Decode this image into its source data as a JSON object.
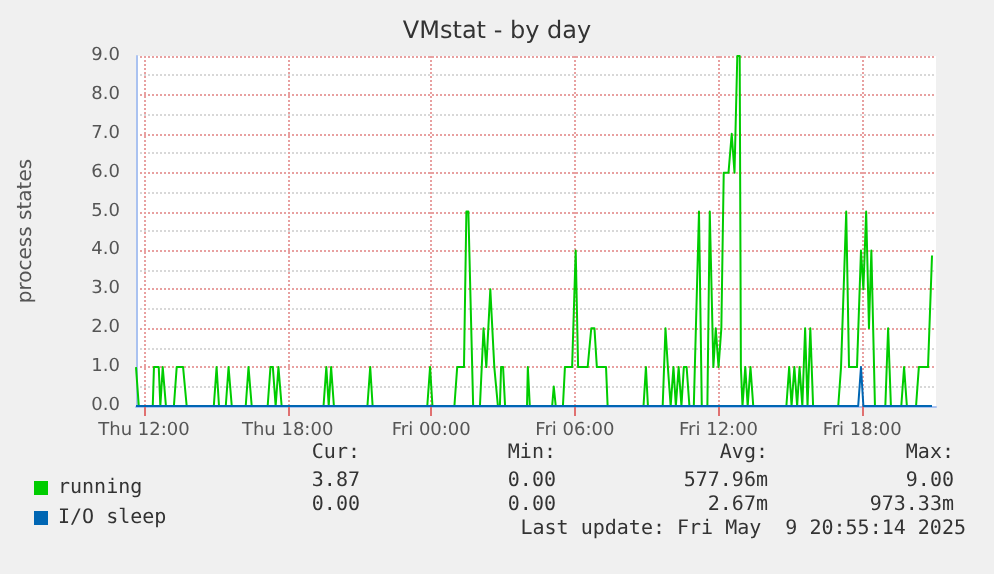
{
  "chart_data": {
    "type": "line",
    "title": "VMstat - by day",
    "ylabel": "process states",
    "xlim": [
      "2025-05-08T11:40",
      "2025-05-09T21:05"
    ],
    "xticks": [
      {
        "value": "2025-05-08T12:00",
        "label": "Thu 12:00"
      },
      {
        "value": "2025-05-08T18:00",
        "label": "Thu 18:00"
      },
      {
        "value": "2025-05-09T00:00",
        "label": "Fri 00:00"
      },
      {
        "value": "2025-05-09T06:00",
        "label": "Fri 06:00"
      },
      {
        "value": "2025-05-09T12:00",
        "label": "Fri 12:00"
      },
      {
        "value": "2025-05-09T18:00",
        "label": "Fri 18:00"
      }
    ],
    "ylim": [
      0,
      9
    ],
    "yticks": [
      {
        "value": 0,
        "label": "0.0"
      },
      {
        "value": 1,
        "label": "1.0"
      },
      {
        "value": 2,
        "label": "2.0"
      },
      {
        "value": 3,
        "label": "3.0"
      },
      {
        "value": 4,
        "label": "4.0"
      },
      {
        "value": 5,
        "label": "5.0"
      },
      {
        "value": 6,
        "label": "6.0"
      },
      {
        "value": 7,
        "label": "7.0"
      },
      {
        "value": 8,
        "label": "8.0"
      },
      {
        "value": 9,
        "label": "9.0"
      }
    ],
    "grid": true,
    "legend": "bottom left",
    "marker": "none",
    "line_style": "solid",
    "series": [
      {
        "name": "running",
        "color": "#00cc00",
        "x": [
          "2025-05-08T11:40",
          "2025-05-08T11:47",
          "2025-05-08T12:22",
          "2025-05-08T12:25",
          "2025-05-08T12:37",
          "2025-05-08T12:41",
          "2025-05-08T12:47",
          "2025-05-08T12:55",
          "2025-05-08T13:15",
          "2025-05-08T13:22",
          "2025-05-08T13:38",
          "2025-05-08T13:47",
          "2025-05-08T14:55",
          "2025-05-08T15:02",
          "2025-05-08T15:08",
          "2025-05-08T15:25",
          "2025-05-08T15:32",
          "2025-05-08T15:40",
          "2025-05-08T16:15",
          "2025-05-08T16:22",
          "2025-05-08T16:30",
          "2025-05-08T17:10",
          "2025-05-08T17:17",
          "2025-05-08T17:23",
          "2025-05-08T17:30",
          "2025-05-08T17:37",
          "2025-05-08T17:45",
          "2025-05-08T19:30",
          "2025-05-08T19:37",
          "2025-05-08T19:43",
          "2025-05-08T19:49",
          "2025-05-08T19:56",
          "2025-05-08T21:20",
          "2025-05-08T21:27",
          "2025-05-08T21:33",
          "2025-05-08T23:50",
          "2025-05-08T23:57",
          "2025-05-09T00:03",
          "2025-05-09T00:58",
          "2025-05-09T01:05",
          "2025-05-09T01:22",
          "2025-05-09T01:28",
          "2025-05-09T01:33",
          "2025-05-09T01:45",
          "2025-05-09T02:02",
          "2025-05-09T02:11",
          "2025-05-09T02:18",
          "2025-05-09T02:28",
          "2025-05-09T02:38",
          "2025-05-09T02:47",
          "2025-05-09T02:52",
          "2025-05-09T02:55",
          "2025-05-09T03:00",
          "2025-05-09T03:05",
          "2025-05-09T04:00",
          "2025-05-09T04:02",
          "2025-05-09T04:07",
          "2025-05-09T05:03",
          "2025-05-09T05:07",
          "2025-05-09T05:12",
          "2025-05-09T05:30",
          "2025-05-09T05:35",
          "2025-05-09T05:53",
          "2025-05-09T06:02",
          "2025-05-09T06:08",
          "2025-05-09T06:32",
          "2025-05-09T06:41",
          "2025-05-09T06:49",
          "2025-05-09T06:55",
          "2025-05-09T07:18",
          "2025-05-09T07:22",
          "2025-05-09T08:52",
          "2025-05-09T08:58",
          "2025-05-09T09:03",
          "2025-05-09T09:40",
          "2025-05-09T09:47",
          "2025-05-09T09:53",
          "2025-05-09T10:00",
          "2025-05-09T10:07",
          "2025-05-09T10:13",
          "2025-05-09T10:20",
          "2025-05-09T10:27",
          "2025-05-09T10:33",
          "2025-05-09T10:40",
          "2025-05-09T10:47",
          "2025-05-09T10:58",
          "2025-05-09T11:11",
          "2025-05-09T11:18",
          "2025-05-09T11:32",
          "2025-05-09T11:38",
          "2025-05-09T11:47",
          "2025-05-09T11:53",
          "2025-05-09T12:00",
          "2025-05-09T12:07",
          "2025-05-09T12:13",
          "2025-05-09T12:25",
          "2025-05-09T12:33",
          "2025-05-09T12:40",
          "2025-05-09T12:47",
          "2025-05-09T12:53",
          "2025-05-09T12:56",
          "2025-05-09T13:00",
          "2025-05-09T13:07",
          "2025-05-09T13:13",
          "2025-05-09T13:20",
          "2025-05-09T13:27",
          "2025-05-09T14:50",
          "2025-05-09T14:57",
          "2025-05-09T15:03",
          "2025-05-09T15:10",
          "2025-05-09T15:17",
          "2025-05-09T15:23",
          "2025-05-09T15:30",
          "2025-05-09T15:37",
          "2025-05-09T15:43",
          "2025-05-09T15:50",
          "2025-05-09T15:57",
          "2025-05-09T17:00",
          "2025-05-09T17:07",
          "2025-05-09T17:20",
          "2025-05-09T17:27",
          "2025-05-09T17:33",
          "2025-05-09T17:47",
          "2025-05-09T17:57",
          "2025-05-09T18:03",
          "2025-05-09T18:10",
          "2025-05-09T18:17",
          "2025-05-09T18:23",
          "2025-05-09T18:32",
          "2025-05-09T18:58",
          "2025-05-09T19:05",
          "2025-05-09T19:12",
          "2025-05-09T19:38",
          "2025-05-09T19:45",
          "2025-05-09T19:52",
          "2025-05-09T20:15",
          "2025-05-09T20:22",
          "2025-05-09T20:45",
          "2025-05-09T20:55"
        ],
        "values": [
          1,
          0,
          0,
          1,
          1,
          0,
          1,
          0,
          0,
          1,
          1,
          0,
          0,
          1,
          0,
          0,
          1,
          0,
          0,
          1,
          0,
          0,
          1,
          1,
          0,
          1,
          0,
          0,
          1,
          0,
          1,
          0,
          0,
          1,
          0,
          0,
          1,
          0,
          0,
          1,
          1,
          5,
          5,
          0,
          0,
          2,
          1,
          3,
          1,
          0,
          0,
          1,
          1,
          0,
          0,
          1,
          0,
          0,
          0.5,
          0,
          0,
          1,
          1,
          4,
          1,
          1,
          2,
          2,
          1,
          1,
          0,
          0,
          1,
          0,
          0,
          2,
          1,
          0,
          1,
          0,
          1,
          0,
          1,
          1,
          0,
          0,
          5,
          0,
          0,
          5,
          1,
          2,
          1,
          2,
          6,
          6,
          7,
          6,
          9,
          9,
          1,
          0,
          1,
          0,
          1,
          0,
          0,
          1,
          0,
          1,
          0,
          1,
          0,
          2,
          0,
          2,
          0,
          0,
          1,
          5,
          1,
          1,
          1,
          4,
          3,
          5,
          2,
          4,
          0,
          0,
          2,
          0,
          0,
          1,
          0,
          0,
          1,
          1,
          3.87
        ]
      },
      {
        "name": "I/O sleep",
        "color": "#0066b3",
        "x": [
          "2025-05-08T11:40",
          "2025-05-09T17:50",
          "2025-05-09T17:57",
          "2025-05-09T18:03",
          "2025-05-09T20:55"
        ],
        "values": [
          0,
          0,
          1,
          0,
          0
        ]
      }
    ],
    "annotations": [
      "Cur:",
      "Min:",
      "Avg:",
      "Max:",
      "3.87",
      "0.00",
      "577.96m",
      "9.00",
      "0.00",
      "0.00",
      "2.67m",
      "973.33m",
      "Last update: Fri May  9 20:55:14 2025"
    ]
  }
}
